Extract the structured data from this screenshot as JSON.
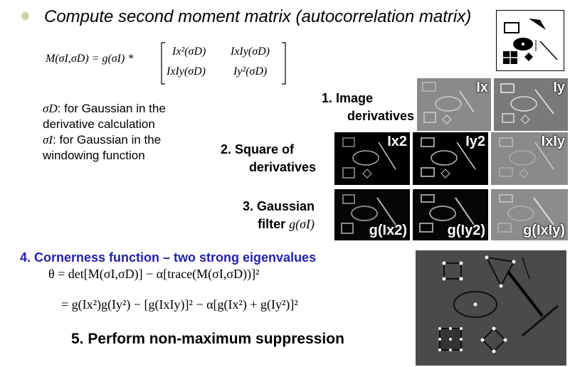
{
  "header": {
    "title": "Compute second moment matrix (autocorrelation matrix)"
  },
  "equation_m": {
    "lhs": "M(σI,σD) = g(σI) *",
    "m11": "Ix²(σD)",
    "m12": "IxIy(σD)",
    "m21": "IxIy(σD)",
    "m22": "Iy²(σD)"
  },
  "notes": {
    "sigma_d_symbol": "σD",
    "sigma_d_text": ": for Gaussian in the derivative calculation",
    "sigma_i_symbol": "σI",
    "sigma_i_text": ": for Gaussian in the windowing function"
  },
  "steps": {
    "step1_line1": "1. Image",
    "step1_line2": "derivatives",
    "step2_line1": "2. Square of",
    "step2_line2": "derivatives",
    "step3_line1": "3. Gaussian",
    "step3_line2": "filter",
    "step3_sym": "g(σI)",
    "step4": "4. Cornerness function – two strong eigenvalues",
    "step5": "5. Perform non-maximum suppression"
  },
  "equations": {
    "theta": "θ = det[M(σI,σD)] − α[trace(M(σI,σD))]²",
    "expanded": "= g(Ix²)g(Iy²) − [g(IxIy)]² − α[g(Ix²) + g(Iy²)]²"
  },
  "panels": {
    "ix": "Ix",
    "iy": "Iy",
    "ix2": "Ix2",
    "iy2": "Iy2",
    "ixiy": "IxIy",
    "g_ix2": "g(Ix2)",
    "g_iy2": "g(Iy2)",
    "g_ixiy": "g(IxIy)"
  },
  "colors": {
    "step4_blue": "#2222aa",
    "bullet": "#d0d0a0"
  }
}
